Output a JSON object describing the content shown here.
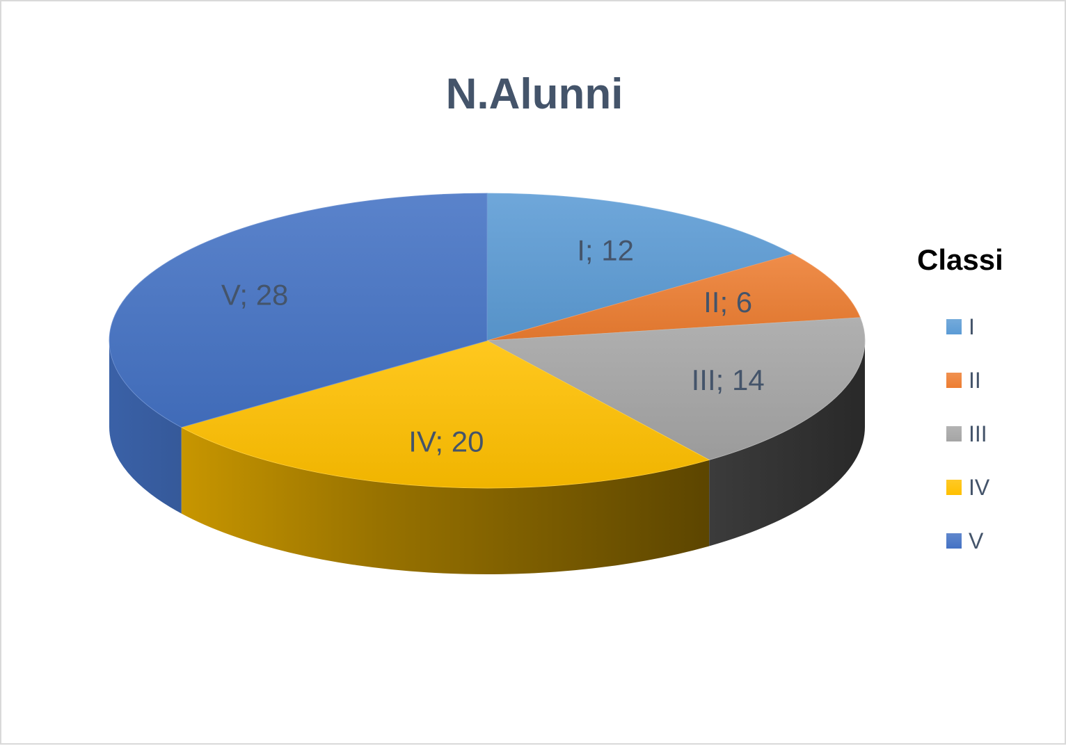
{
  "chart_data": {
    "type": "pie",
    "title": "N.Alunni",
    "legend_title": "Classi",
    "legend_position": "right",
    "style": "3d",
    "categories": [
      "I",
      "II",
      "III",
      "IV",
      "V"
    ],
    "values": [
      12,
      6,
      14,
      20,
      28
    ],
    "data_labels": [
      "I; 12",
      "II; 6",
      "III; 14",
      "IV; 20",
      "V; 28"
    ],
    "colors": [
      "#5b9bd5",
      "#ed7d31",
      "#a5a5a5",
      "#ffc000",
      "#4472c4"
    ]
  }
}
